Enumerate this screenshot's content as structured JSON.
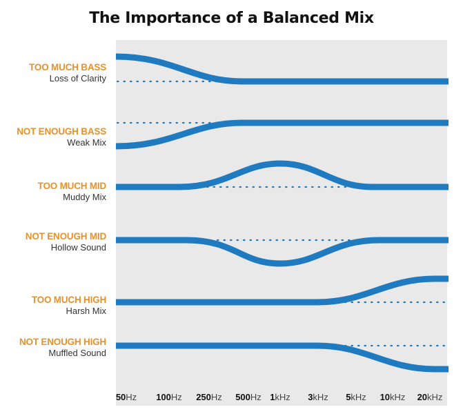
{
  "title": "The Importance of a Balanced Mix",
  "colors": {
    "label": "#e8912a",
    "curve": "#1f7ac0",
    "panel": "#e9e9e9",
    "dots": "#1f7ac0"
  },
  "rows": [
    {
      "heading": "TOO MUCH BASS",
      "sub": "Loss of Clarity",
      "kind": "bass_up"
    },
    {
      "heading": "NOT ENOUGH BASS",
      "sub": "Weak Mix",
      "kind": "bass_down"
    },
    {
      "heading": "TOO MUCH MID",
      "sub": "Muddy Mix",
      "kind": "mid_up"
    },
    {
      "heading": "NOT ENOUGH MID",
      "sub": "Hollow Sound",
      "kind": "mid_down"
    },
    {
      "heading": "TOO MUCH HIGH",
      "sub": "Harsh Mix",
      "kind": "high_up"
    },
    {
      "heading": "NOT ENOUGH HIGH",
      "sub": "Muffled Sound",
      "kind": "high_down"
    }
  ],
  "frequencies": [
    {
      "num": "50",
      "unit": "Hz"
    },
    {
      "num": "100",
      "unit": "Hz"
    },
    {
      "num": "250",
      "unit": "Hz"
    },
    {
      "num": "500",
      "unit": "Hz"
    },
    {
      "num": "1",
      "unit": "kHz"
    },
    {
      "num": "3",
      "unit": "kHz"
    },
    {
      "num": "5",
      "unit": "kHz"
    },
    {
      "num": "10",
      "unit": "kHz"
    },
    {
      "num": "20",
      "unit": "kHz"
    }
  ]
}
